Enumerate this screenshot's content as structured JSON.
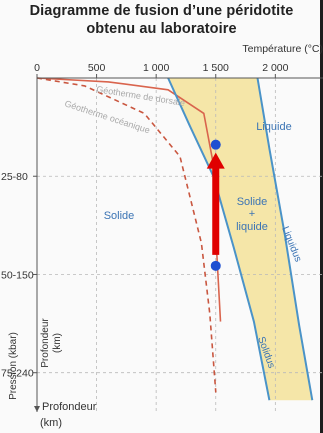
{
  "title_lines": [
    "Diagramme de fusion d’une péridotite",
    "obtenu au laboratoire"
  ],
  "x_axis": {
    "label": "Température (°C)",
    "ticks": [
      "0",
      "500",
      "1 000",
      "1 500",
      "2 000"
    ]
  },
  "y_axis": {
    "pressure_label": "Pression (kbar)",
    "depth_label": "Profondeur (km)",
    "bottom_label": "Profondeur (km)",
    "ticks": [
      "25",
      "50",
      "75"
    ],
    "depth_ticks": [
      "80",
      "150",
      "240"
    ]
  },
  "regions": {
    "liquid": "Liquide",
    "solid": "Solide",
    "mixed_line1": "Solide",
    "mixed_line2": "+",
    "mixed_line3": "liquide"
  },
  "curves": {
    "solidus": "Solidus",
    "liquidus": "Liquidus",
    "ridge_geotherm": "Géotherme de dorsale",
    "oceanic_geotherm": "Géotherme océanique"
  },
  "colors": {
    "fill": "#f5e6a8",
    "boundary": "#4a93c8",
    "ridge": "#d9644d",
    "oceanic": "#c9563f",
    "grid": "#b9b9b9",
    "arrow": "#e00000",
    "dot": "#1f4fd1"
  },
  "chart_data": {
    "type": "line",
    "xlabel": "Température (°C)",
    "ylabel": "Pression (kbar)",
    "xlim": [
      0,
      2400
    ],
    "ylim": [
      0,
      85
    ],
    "x_ticks": [
      0,
      500,
      1000,
      1500,
      2000
    ],
    "y_ticks": [
      25,
      50,
      75
    ],
    "series": [
      {
        "name": "Solidus",
        "x": [
          1100,
          1280,
          1480,
          1650,
          1820,
          1950
        ],
        "y": [
          0,
          12,
          25,
          43,
          62,
          82
        ]
      },
      {
        "name": "Liquidus",
        "x": [
          1850,
          1950,
          2080,
          2200,
          2310
        ],
        "y": [
          0,
          18,
          40,
          63,
          82
        ]
      },
      {
        "name": "Géotherme de dorsale",
        "x": [
          0,
          600,
          1100,
          1400,
          1480,
          1500,
          1540
        ],
        "y": [
          0,
          1,
          3,
          9,
          22,
          40,
          62
        ]
      },
      {
        "name": "Géotherme océanique",
        "x": [
          0,
          400,
          900,
          1200,
          1380,
          1450,
          1500
        ],
        "y": [
          0,
          2,
          9,
          20,
          42,
          60,
          80
        ]
      }
    ],
    "arrow": {
      "from": {
        "x": 1500,
        "y": 45
      },
      "to": {
        "x": 1500,
        "y": 19
      }
    },
    "points": [
      {
        "x": 1500,
        "y": 19
      },
      {
        "x": 1500,
        "y": 45
      }
    ]
  }
}
